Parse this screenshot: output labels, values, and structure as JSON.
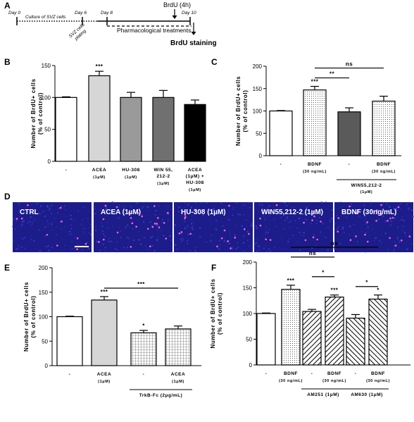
{
  "labels": {
    "A": "A",
    "B": "B",
    "C": "C",
    "D": "D",
    "E": "E",
    "F": "F"
  },
  "timeline": {
    "days": [
      "Day 0",
      "Day 6",
      "Day 8",
      "Day 10"
    ],
    "culture_text": "Culture of SVZ cells",
    "plating_text_1": "SVZ cells",
    "plating_text_2": "plating",
    "brdu_text": "BrdU (4h)",
    "treatment_text": "Pharmacological treatments",
    "staining_text": "BrdU staining"
  },
  "colors": {
    "white": "#ffffff",
    "light_gray": "#d6d6d6",
    "mid_gray": "#9a9a9a",
    "dark_gray": "#707070",
    "darker_gray": "#5a5a5a",
    "black": "#000000",
    "micro_blue": "#1c1c8a",
    "micro_pink": "#ff5fd6"
  },
  "micrographs": [
    "CTRL",
    "ACEA (1µM)",
    "HU-308 (1µM)",
    "WIN55,212-2 (1µM)",
    "BDNF (30ng/mL)"
  ],
  "chart_data": [
    {
      "panel": "B",
      "type": "bar",
      "ylabel_1": "Number of BrdU+ cells",
      "ylabel_2": "(% of control)",
      "ylim": [
        0,
        150
      ],
      "yticks": [
        0,
        50,
        100,
        150
      ],
      "categories": [
        {
          "lines": [
            "-"
          ],
          "sub": []
        },
        {
          "lines": [
            "ACEA"
          ],
          "sub": [
            "(1μM)"
          ]
        },
        {
          "lines": [
            "HU-308"
          ],
          "sub": [
            "(1μM)"
          ]
        },
        {
          "lines": [
            "WIN 55,",
            "212-2"
          ],
          "sub": [
            "(1μM)"
          ]
        },
        {
          "lines": [
            "ACEA",
            "(1μM) +",
            "HU-308"
          ],
          "sub": [
            "(1μM)"
          ]
        }
      ],
      "values": [
        100,
        134,
        100,
        100,
        89
      ],
      "errors": [
        1,
        7,
        8,
        11,
        7
      ],
      "fills": [
        "white",
        "light_gray",
        "mid_gray",
        "dark_gray",
        "black"
      ],
      "sig": [
        "",
        "***",
        "",
        "",
        ""
      ],
      "brackets": []
    },
    {
      "panel": "C",
      "type": "bar",
      "ylabel_1": "Number of BrdU+ cells",
      "ylabel_2": "(% of control)",
      "ylim": [
        0,
        200
      ],
      "yticks": [
        0,
        50,
        100,
        150,
        200
      ],
      "categories": [
        {
          "lines": [
            "-"
          ],
          "sub": []
        },
        {
          "lines": [
            "BDNF"
          ],
          "sub": [
            "(30 ng/mL)"
          ]
        },
        {
          "lines": [
            "-"
          ],
          "sub": []
        },
        {
          "lines": [
            "BDNF"
          ],
          "sub": [
            "(30 ng/mL)"
          ]
        }
      ],
      "values": [
        100,
        147,
        98,
        122
      ],
      "errors": [
        1,
        8,
        9,
        11
      ],
      "fills": [
        "white",
        "dots",
        "darker_gray",
        "dots"
      ],
      "sig": [
        "",
        "***",
        "",
        ""
      ],
      "brackets": [
        {
          "from": 1,
          "to": 3,
          "text": "ns"
        },
        {
          "from": 1,
          "to": 2,
          "text": "**"
        }
      ],
      "group_labels": [
        {
          "from": 2,
          "to": 3,
          "text": "WIN55,212-2",
          "sub": "(1μM)"
        }
      ]
    },
    {
      "panel": "E",
      "type": "bar",
      "ylabel_1": "Number of BrdU+ cells",
      "ylabel_2": "(% of control)",
      "ylim": [
        0,
        200
      ],
      "yticks": [
        0,
        50,
        100,
        150,
        200
      ],
      "categories": [
        {
          "lines": [
            "-"
          ],
          "sub": []
        },
        {
          "lines": [
            "ACEA"
          ],
          "sub": [
            "(1μM)"
          ]
        },
        {
          "lines": [
            "-"
          ],
          "sub": []
        },
        {
          "lines": [
            "ACEA"
          ],
          "sub": [
            "(1μM)"
          ]
        }
      ],
      "values": [
        100,
        134,
        67,
        75
      ],
      "errors": [
        1,
        7,
        5,
        6
      ],
      "fills": [
        "white",
        "light_gray",
        "grid",
        "grid"
      ],
      "sig": [
        "",
        "***",
        "*",
        ""
      ],
      "brackets": [
        {
          "from": 1,
          "to": 3,
          "text": "***"
        }
      ],
      "group_labels": [
        {
          "from": 2,
          "to": 3,
          "text": "TrkB-Fc (2μg/mL)",
          "sub": ""
        }
      ]
    },
    {
      "panel": "F",
      "type": "bar",
      "ylabel_1": "Number of BrdU+ cells",
      "ylabel_2": "(% of control)",
      "ylim": [
        0,
        200
      ],
      "yticks": [
        0,
        50,
        100,
        150,
        200
      ],
      "categories": [
        {
          "lines": [
            "-"
          ],
          "sub": []
        },
        {
          "lines": [
            "BDNF"
          ],
          "sub": [
            "(30 ng/mL)"
          ]
        },
        {
          "lines": [
            "-"
          ],
          "sub": []
        },
        {
          "lines": [
            "BDNF"
          ],
          "sub": [
            "(30 ng/mL)"
          ]
        },
        {
          "lines": [
            "-"
          ],
          "sub": []
        },
        {
          "lines": [
            "BDNF"
          ],
          "sub": [
            "(30 ng/mL)"
          ]
        }
      ],
      "values": [
        100,
        147,
        104,
        132,
        91,
        128
      ],
      "errors": [
        1,
        8,
        4,
        4,
        7,
        8
      ],
      "fills": [
        "white",
        "dots",
        "hatch",
        "hatch",
        "hatch2",
        "hatch2"
      ],
      "sig": [
        "",
        "***",
        "",
        "***",
        "",
        "*"
      ],
      "brackets": [
        {
          "from": 1,
          "to": 5,
          "text": "ns"
        },
        {
          "from": 1,
          "to": 3,
          "text": "ns"
        },
        {
          "from": 2,
          "to": 3,
          "text": "*"
        },
        {
          "from": 4,
          "to": 5,
          "text": "*"
        }
      ],
      "group_labels": [
        {
          "from": 2,
          "to": 3,
          "text": "AM251 (1μM)",
          "sub": ""
        },
        {
          "from": 4,
          "to": 5,
          "text": "AM630 (1μM)",
          "sub": ""
        }
      ]
    }
  ]
}
